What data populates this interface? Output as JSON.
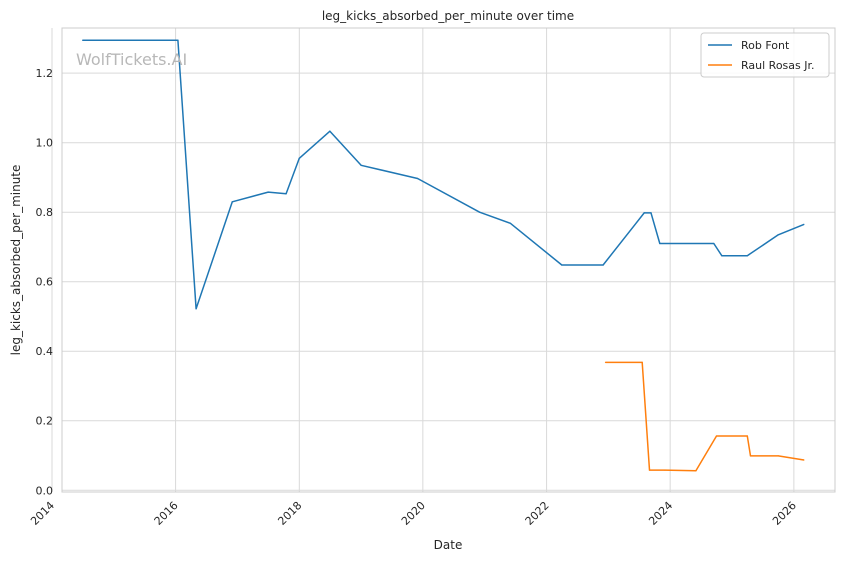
{
  "watermark": "WolfTickets.AI",
  "chart_data": {
    "type": "line",
    "title": "leg_kicks_absorbed_per_minute over time",
    "xlabel": "Date",
    "ylabel": "leg_kicks_absorbed_per_minute",
    "x_ticks": [
      "2014",
      "2016",
      "2018",
      "2020",
      "2022",
      "2024",
      "2026"
    ],
    "y_ticks": [
      "0.0",
      "0.2",
      "0.4",
      "0.6",
      "0.8",
      "1.0",
      "1.2"
    ],
    "xlim": [
      "2014-03-01",
      "2026-09-01"
    ],
    "ylim": [
      -0.005,
      1.33
    ],
    "grid": true,
    "legend_position": "top-right",
    "series": [
      {
        "name": "Rob Font",
        "color": "#1f77b4",
        "points": [
          [
            "2014-07-01",
            1.295
          ],
          [
            "2016-01-15",
            1.295
          ],
          [
            "2016-05-01",
            0.522
          ],
          [
            "2016-12-01",
            0.83
          ],
          [
            "2017-07-01",
            0.858
          ],
          [
            "2017-10-15",
            0.853
          ],
          [
            "2018-01-01",
            0.955
          ],
          [
            "2018-07-01",
            1.033
          ],
          [
            "2019-01-01",
            0.935
          ],
          [
            "2019-12-01",
            0.897
          ],
          [
            "2020-12-01",
            0.8
          ],
          [
            "2021-06-01",
            0.768
          ],
          [
            "2022-04-01",
            0.648
          ],
          [
            "2022-12-01",
            0.648
          ],
          [
            "2023-08-01",
            0.798
          ],
          [
            "2023-09-10",
            0.798
          ],
          [
            "2023-11-01",
            0.71
          ],
          [
            "2024-09-15",
            0.71
          ],
          [
            "2024-11-01",
            0.675
          ],
          [
            "2025-04-01",
            0.675
          ],
          [
            "2025-10-01",
            0.735
          ],
          [
            "2026-03-01",
            0.765
          ]
        ]
      },
      {
        "name": "Raul Rosas Jr.",
        "color": "#ff7f0e",
        "points": [
          [
            "2022-12-15",
            0.368
          ],
          [
            "2023-07-20",
            0.368
          ],
          [
            "2023-09-01",
            0.058
          ],
          [
            "2023-12-01",
            0.058
          ],
          [
            "2024-06-01",
            0.056
          ],
          [
            "2024-10-01",
            0.156
          ],
          [
            "2025-04-01",
            0.156
          ],
          [
            "2025-04-20",
            0.099
          ],
          [
            "2025-10-01",
            0.099
          ],
          [
            "2026-03-01",
            0.087
          ]
        ]
      }
    ]
  }
}
